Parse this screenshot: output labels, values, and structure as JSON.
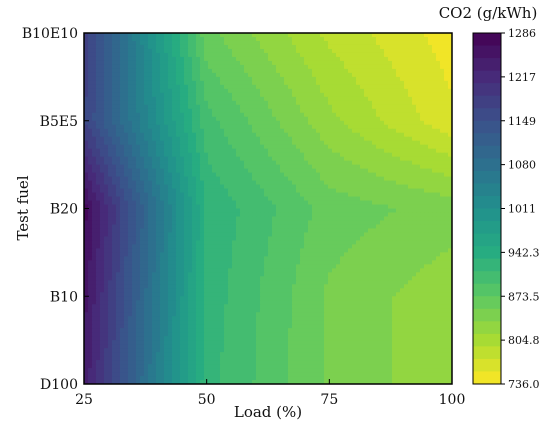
{
  "chart_data": {
    "type": "heatmap",
    "style": "filled-contour",
    "title": "",
    "xlabel": "Load (%)",
    "ylabel": "Test fuel",
    "x": [
      25,
      50,
      75,
      100
    ],
    "xticks": [
      "25",
      "50",
      "75",
      "100"
    ],
    "xlim": [
      25,
      100
    ],
    "y": [
      "D100",
      "B10",
      "B20",
      "B5E5",
      "B10E10"
    ],
    "colorbar": {
      "title": "CO2 (g/kWh)",
      "ticks": [
        "1286",
        "1217",
        "1149",
        "1080",
        "1011",
        "942.3",
        "873.5",
        "804.8",
        "736.0"
      ],
      "range": [
        736.0,
        1286
      ],
      "colormap": "viridis"
    },
    "values": [
      [
        1240,
        920,
        850,
        820
      ],
      [
        1255,
        925,
        850,
        820
      ],
      [
        1275,
        930,
        865,
        845
      ],
      [
        1170,
        900,
        820,
        760
      ],
      [
        1180,
        860,
        790,
        745
      ]
    ],
    "grid": false,
    "legend": "colorbar-right"
  }
}
